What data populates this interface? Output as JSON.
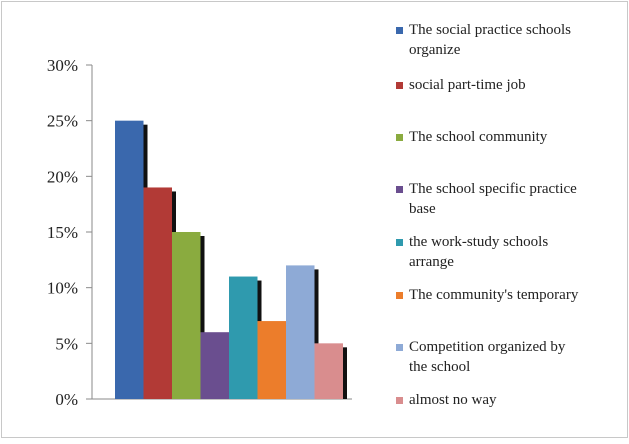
{
  "chart_data": {
    "type": "bar",
    "categories": [
      "The social practice schools organize",
      "social part-time job",
      "The school community",
      "The school specific practice base",
      "the work-study schools arrange",
      "The community's temporary",
      "Competition organized by the school",
      "almost no way"
    ],
    "values": [
      25,
      19,
      15,
      6,
      11,
      7,
      12,
      5
    ],
    "unit": "%",
    "ylim": [
      0,
      30
    ],
    "yticks": [
      "0%",
      "5%",
      "10%",
      "15%",
      "20%",
      "25%",
      "30%"
    ],
    "colors": [
      "#3a68ad",
      "#b23a36",
      "#8aab3f",
      "#6a4e8f",
      "#2f9aae",
      "#ec7d2b",
      "#8eaad6",
      "#d98d8e"
    ],
    "legend": {
      "placement": "right",
      "items": [
        {
          "lines": [
            "The social practice schools",
            "organize"
          ]
        },
        {
          "lines": [
            "social part-time job"
          ]
        },
        {
          "lines": [
            "The school community"
          ]
        },
        {
          "lines": [
            "The school specific practice",
            "base"
          ]
        },
        {
          "lines": [
            "the work-study schools",
            "arrange"
          ]
        },
        {
          "lines": [
            "The community's temporary"
          ]
        },
        {
          "lines": [
            "Competition organized by",
            "the school"
          ]
        },
        {
          "lines": [
            "almost no way"
          ]
        }
      ]
    },
    "grid": false,
    "title": "",
    "xlabel": "",
    "ylabel": ""
  }
}
